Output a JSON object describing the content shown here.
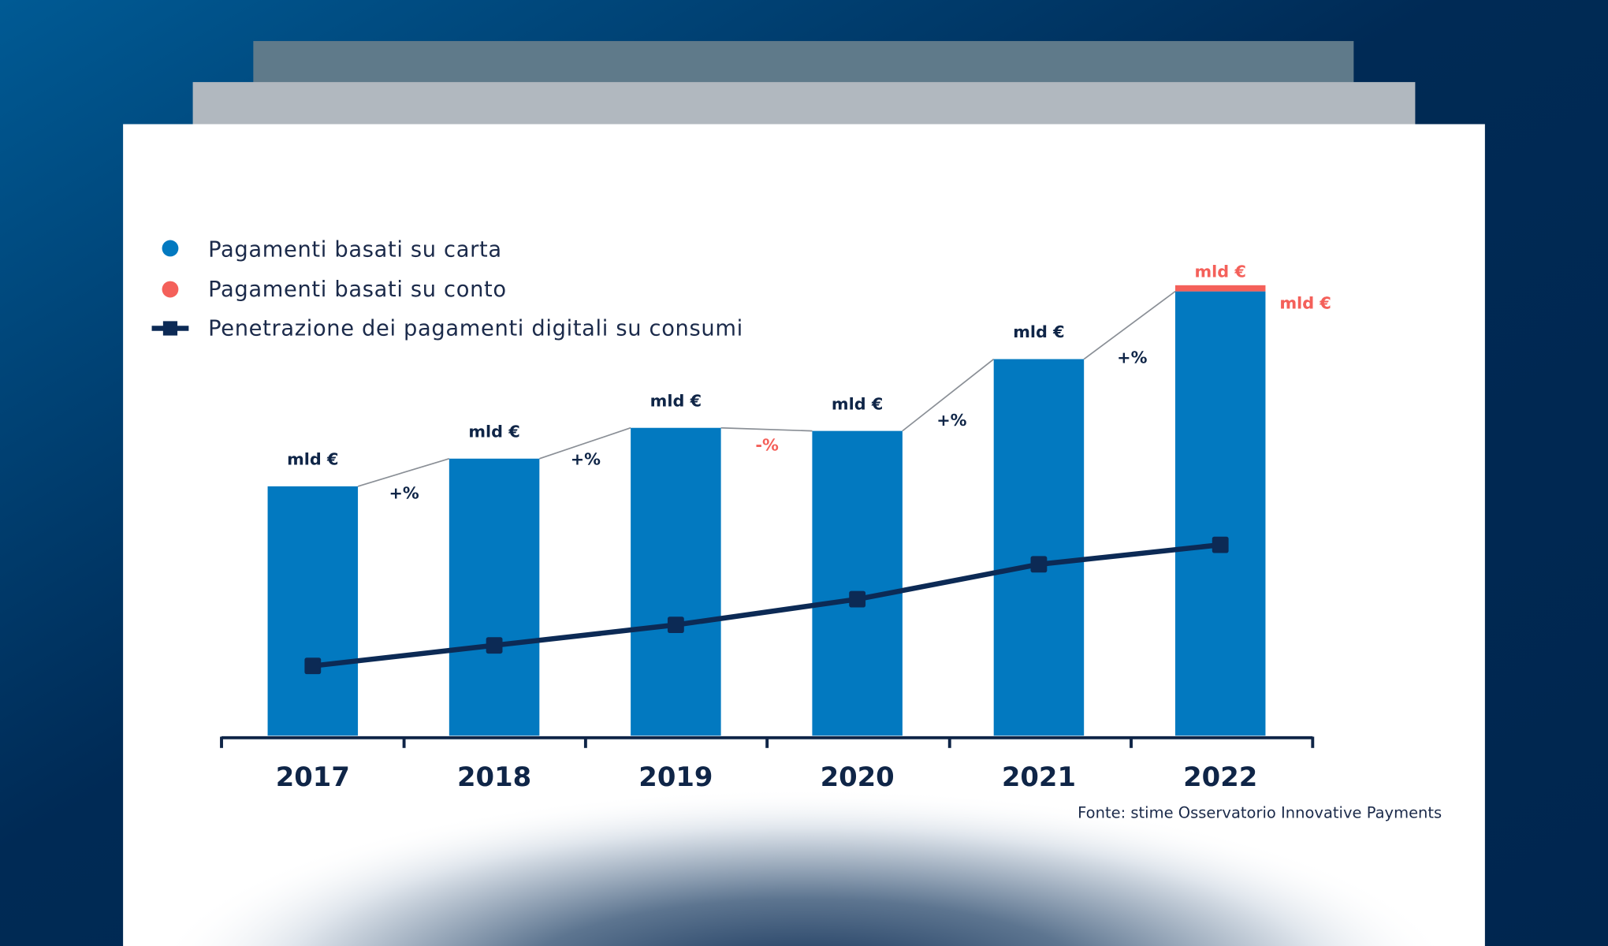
{
  "chart_data": {
    "type": "bar",
    "categories": [
      "2017",
      "2018",
      "2019",
      "2020",
      "2021",
      "2022"
    ],
    "series": [
      {
        "name": "Pagamenti basati su carta",
        "type": "bar",
        "color": "#0279c0",
        "values": [
          243,
          270,
          300,
          297,
          367,
          433
        ]
      },
      {
        "name": "Pagamenti basati su conto",
        "type": "bar-stacked",
        "color": "#f4605a",
        "values": [
          0,
          0,
          0,
          0,
          0,
          6
        ]
      },
      {
        "name": "Penetrazione dei pagamenti digitali su consumi",
        "type": "line",
        "color": "#0c2a55",
        "values": [
          68,
          88,
          108,
          133,
          167,
          186
        ]
      }
    ],
    "bar_labels": [
      "mld €",
      "mld €",
      "mld €",
      "mld €",
      "mld €",
      "mld €"
    ],
    "growth_labels": [
      {
        "text": "+%",
        "color": "#0f2547"
      },
      {
        "text": "+%",
        "color": "#0f2547"
      },
      {
        "text": "-%",
        "color": "#f4605a"
      },
      {
        "text": "+%",
        "color": "#0f2547"
      },
      {
        "text": "+%",
        "color": "#0f2547"
      }
    ],
    "conto_labels": [
      "mld €",
      "mld €"
    ],
    "legend_position": "top-left",
    "grid": false,
    "source": "Fonte: stime Osservatorio Innovative Payments"
  },
  "legend": {
    "items": [
      {
        "label": "Pagamenti basati su carta",
        "color": "#0279c0",
        "icon": "circle"
      },
      {
        "label": "Pagamenti basati su conto",
        "color": "#f4605a",
        "icon": "circle"
      },
      {
        "label": "Penetrazione dei pagamenti digitali su consumi",
        "color": "#0c2a55",
        "icon": "line-square-marker"
      }
    ]
  },
  "colors": {
    "background_top": "#005a94",
    "background_bottom": "#002a55",
    "panel": "#ffffff",
    "back_panel_1": "#b1b8bf",
    "back_panel_2": "#5f7a8a"
  }
}
